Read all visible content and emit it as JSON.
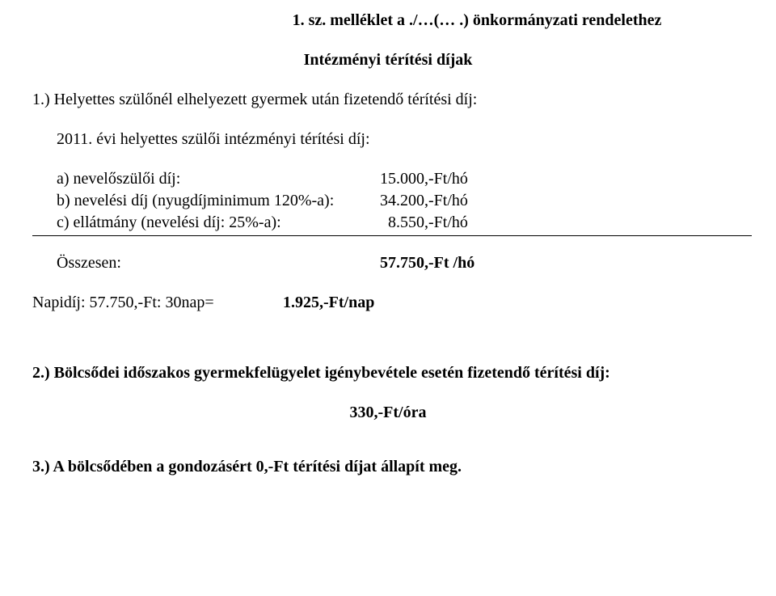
{
  "title": "1. sz. melléklet a ./…(… .) önkormányzati rendelethez",
  "subtitle": "Intézményi térítési díjak",
  "section1": {
    "heading": "1.) Helyettes szülőnél elhelyezett gyermek után fizetendő térítési díj:",
    "yearLine": "2011. évi helyettes szülői intézményi térítési díj:",
    "rows": [
      {
        "label": "a) nevelőszülői díj:",
        "value": "15.000,-Ft/hó"
      },
      {
        "label": "b) nevelési díj (nyugdíjminimum 120%-a):",
        "value": "34.200,-Ft/hó"
      },
      {
        "label": "c) ellátmány (nevelési díj: 25%-a):",
        "value": "  8.550,-Ft/hó"
      }
    ],
    "totalLabel": "Összesen:",
    "totalValue": "57.750,-Ft /hó",
    "napidijLabel": "Napidíj: 57.750,-Ft: 30nap=",
    "napidijValue": "1.925,-Ft/nap"
  },
  "section2": {
    "heading": "2.) Bölcsődei időszakos gyermekfelügyelet igénybevétele esetén fizetendő térítési díj:",
    "value": "330,-Ft/óra"
  },
  "section3": {
    "text": "3.) A bölcsődében a gondozásért 0,-Ft térítési díjat állapít meg."
  }
}
